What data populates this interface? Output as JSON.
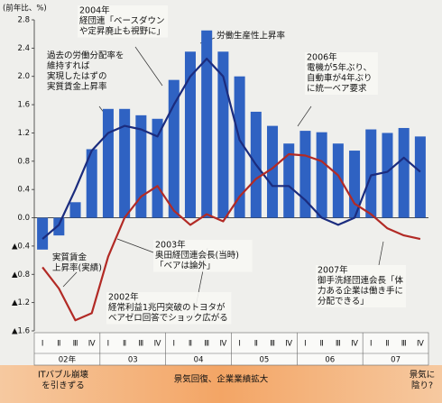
{
  "chart_data": {
    "type": "bar_line",
    "y_unit": "(前年比、%)",
    "categories": [
      "Ⅰ",
      "Ⅱ",
      "Ⅲ",
      "Ⅳ",
      "Ⅰ",
      "Ⅱ",
      "Ⅲ",
      "Ⅳ",
      "Ⅰ",
      "Ⅱ",
      "Ⅲ",
      "Ⅳ",
      "Ⅰ",
      "Ⅱ",
      "Ⅲ",
      "Ⅳ",
      "Ⅰ",
      "Ⅱ",
      "Ⅲ",
      "Ⅳ",
      "Ⅰ",
      "Ⅱ",
      "Ⅲ",
      "Ⅳ"
    ],
    "years": [
      "02年",
      "03",
      "04",
      "05",
      "06",
      "07"
    ],
    "ylim": [
      -1.6,
      2.8
    ],
    "yticks": [
      2.8,
      2.4,
      {
        "value": 2.0,
        "label": "2.0"
      },
      1.6,
      1.2,
      0.8,
      0.4,
      {
        "value": 0,
        "label": "0.0"
      },
      {
        "value": -0.4,
        "label": "▲0.4"
      },
      {
        "value": -0.8,
        "label": "▲0.8"
      },
      {
        "value": -1.2,
        "label": "▲1.2"
      },
      {
        "value": -1.6,
        "label": "▲1.6"
      }
    ],
    "series": [
      {
        "name": "労働生産性上昇率",
        "kind": "bar",
        "color": "#2f62c2",
        "values": [
          -0.45,
          -0.25,
          0.22,
          0.97,
          1.54,
          1.54,
          1.45,
          1.4,
          1.95,
          2.35,
          2.65,
          2.35,
          2.0,
          1.5,
          1.3,
          1.05,
          1.23,
          1.21,
          1.05,
          0.95,
          1.25,
          1.2,
          1.27,
          1.15
        ]
      },
      {
        "name": "過去の労働分配率を維持すれば実現したはずの実質賃金上昇率",
        "kind": "line",
        "color": "#1b2c7e",
        "values": [
          -0.3,
          -0.1,
          0.4,
          0.95,
          1.2,
          1.3,
          1.25,
          1.15,
          1.6,
          2.0,
          2.25,
          2.0,
          1.1,
          0.75,
          0.45,
          0.45,
          0.25,
          0.0,
          -0.1,
          0.0,
          0.6,
          0.65,
          0.85,
          0.65
        ]
      },
      {
        "name": "実質賃金上昇率(実績)",
        "kind": "line",
        "color": "#b22a25",
        "values": [
          -0.7,
          -1.0,
          -1.45,
          -1.35,
          -0.55,
          0.0,
          0.3,
          0.45,
          0.1,
          -0.1,
          0.05,
          -0.05,
          0.3,
          0.55,
          0.7,
          0.9,
          0.88,
          0.8,
          0.6,
          0.2,
          0.05,
          -0.15,
          -0.25,
          -0.3
        ]
      }
    ],
    "annotations": [
      [
        "2004年",
        "経団連「ベースダウン",
        "や定昇廃止も視野に」"
      ],
      [
        "労働生産性上昇率"
      ],
      [
        "過去の労働分配率を",
        "維持すれば",
        "実現したはずの",
        "実質賃金上昇率"
      ],
      [
        "2006年",
        "電機が5年ぶり、",
        "自動車が4年ぶり",
        "に統一ベア要求"
      ],
      [
        "実質賃金",
        "上昇率(実績)"
      ],
      [
        "2003年",
        "奥田経団連会長(当時)",
        "「ベアは論外」"
      ],
      [
        "2007年",
        "御手洗経団連会長「体",
        "力ある企業は働き手に",
        "分配できる」"
      ],
      [
        "2002年",
        "経常利益1兆円突破のトヨタが",
        "ベアゼロ回答でショック広がる"
      ]
    ],
    "phases": [
      [
        "ITバブル崩壊",
        "を引きずる"
      ],
      [
        "景気回復、企業業績拡大"
      ],
      [
        "景気に",
        "陰り?"
      ]
    ]
  }
}
